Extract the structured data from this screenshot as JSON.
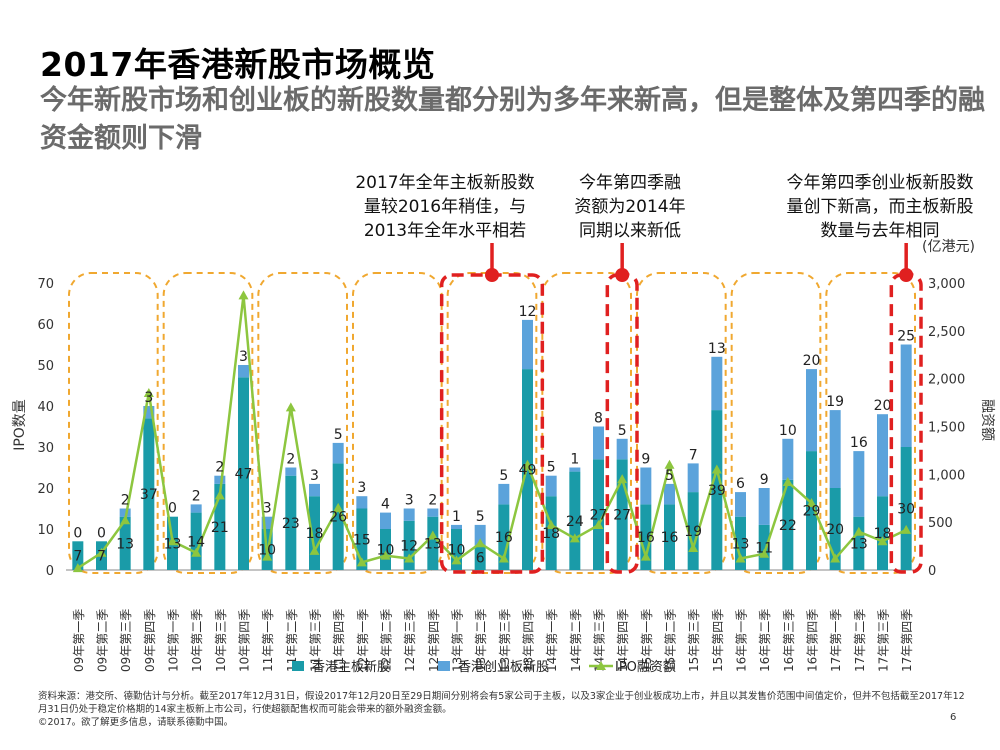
{
  "page": {
    "title": "2017年香港新股市场概览",
    "subtitle": "今年新股市场和创业板的新股数量都分别为多年来新高，但是整体及第四季的融资金额则下滑",
    "callouts": [
      "2017年全年主板新股数\n量较2016年稍佳，与\n2013年全年水平相若",
      "今年第四季融\n资额为2014年\n同期以来新低",
      "今年第四季创业板新股数\n量创下新高，而主板新股\n数量与去年相同"
    ],
    "unit": "(亿港元)",
    "footnote": "资料来源：港交所、德勤估计与分析。截至2017年12月31日，假设2017年12月20日至29日期间分别将会有5家公司于主板，以及3家企业于创业板成功上市，并且以其发售价范围中间值定价，但并不包括截至2017年12月31日仍处于稳定价格期的14家主板新上市公司，行使超额配售权而可能会带来的额外融资金额。",
    "copyright": "©2017。欲了解更多信息，请联系德勤中国。",
    "page_number": "6"
  },
  "colors": {
    "main_board": "#1a9ba8",
    "gem": "#5ba3db",
    "ipo_line": "#8dc63f",
    "highlight": "#e02020",
    "year_box": "#f0a830"
  },
  "chart_data": {
    "type": "bar",
    "stacked": true,
    "categories": [
      "09年第一季",
      "09年第二季",
      "09年第三季",
      "09年第四季",
      "10年第一季",
      "10年第二季",
      "10年第三季",
      "10年第四季",
      "11年第一季",
      "11年第二季",
      "11年第三季",
      "11年第四季",
      "12年第一季",
      "12年第二季",
      "12年第三季",
      "12年第四季",
      "13年第一季",
      "13年第二季",
      "13年第三季",
      "13年第四季",
      "14年第一季",
      "14年第二季",
      "14年第三季",
      "14年第四季",
      "15年第一季",
      "15年第二季",
      "15年第三季",
      "15年第四季",
      "16年第一季",
      "16年第二季",
      "16年第三季",
      "16年第四季",
      "17年第一季",
      "17年第二季",
      "17年第三季",
      "17年第四季"
    ],
    "series": [
      {
        "name": "香港主板新股",
        "type": "bar",
        "axis": "left",
        "values": [
          7,
          7,
          13,
          37,
          13,
          14,
          21,
          47,
          10,
          23,
          18,
          26,
          15,
          10,
          12,
          13,
          10,
          6,
          16,
          49,
          18,
          24,
          27,
          27,
          16,
          16,
          19,
          39,
          13,
          11,
          22,
          29,
          20,
          13,
          18,
          30
        ]
      },
      {
        "name": "香港创业板新股",
        "type": "bar",
        "axis": "left",
        "values": [
          0,
          0,
          2,
          3,
          0,
          2,
          2,
          3,
          3,
          2,
          3,
          5,
          3,
          4,
          3,
          2,
          1,
          5,
          5,
          12,
          5,
          1,
          8,
          5,
          9,
          5,
          7,
          13,
          6,
          9,
          10,
          20,
          19,
          16,
          20,
          25
        ]
      },
      {
        "name": "IPO融资额",
        "type": "line",
        "axis": "right",
        "values": [
          20,
          180,
          520,
          1850,
          300,
          180,
          780,
          2870,
          140,
          1700,
          200,
          650,
          80,
          150,
          120,
          360,
          100,
          280,
          120,
          1100,
          470,
          330,
          470,
          950,
          140,
          1100,
          230,
          1050,
          120,
          170,
          920,
          700,
          120,
          400,
          300,
          420
        ]
      }
    ],
    "ylabel": "IPO数量",
    "y2label": "融资额",
    "ylim": [
      0,
      70
    ],
    "y2lim": [
      0,
      3000
    ],
    "yticks": [
      "0",
      "10",
      "20",
      "30",
      "40",
      "50",
      "60",
      "70"
    ],
    "y2ticks": [
      "0",
      "500",
      "1,000",
      "1,500",
      "2,000",
      "2,500",
      "3,000"
    ],
    "legend_position": "bottom"
  }
}
